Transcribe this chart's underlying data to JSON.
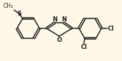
{
  "background_color": "#fdf8e8",
  "line_color": "#222222",
  "line_width": 1.1,
  "text_color": "#222222",
  "label_fontsize": 6.0,
  "small_fontsize": 5.5,
  "figsize": [
    1.73,
    0.86
  ],
  "dpi": 100,
  "xlim": [
    0,
    173
  ],
  "ylim": [
    0,
    86
  ]
}
